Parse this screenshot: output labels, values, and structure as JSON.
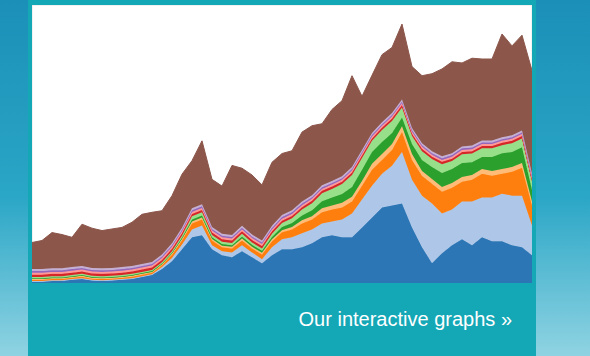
{
  "chart_data": {
    "type": "area",
    "stacked": true,
    "grid": true,
    "tick_labels": false,
    "x": [
      0,
      1,
      2,
      3,
      4,
      5,
      6,
      7,
      8,
      9,
      10,
      11,
      12,
      13,
      14,
      15,
      16,
      17,
      18,
      19,
      20,
      21,
      22,
      23,
      24,
      25,
      26,
      27,
      28,
      29,
      30,
      31,
      32,
      33,
      34,
      35,
      36,
      37,
      38,
      39,
      40,
      41,
      42,
      43,
      44,
      45,
      46,
      47,
      48,
      49,
      50
    ],
    "xlim": [
      0,
      50
    ],
    "xticks": [
      0,
      10,
      20,
      30,
      40,
      50
    ],
    "ylim": [
      0,
      7
    ],
    "yticks": [
      0,
      1,
      2,
      3,
      4,
      5,
      6,
      7
    ],
    "series": [
      {
        "color": "#2c76b5",
        "values": [
          0.03,
          0.03,
          0.05,
          0.05,
          0.08,
          0.1,
          0.06,
          0.05,
          0.06,
          0.08,
          0.1,
          0.15,
          0.2,
          0.35,
          0.55,
          0.85,
          1.15,
          1.2,
          0.85,
          0.7,
          0.65,
          0.8,
          0.65,
          0.5,
          0.7,
          0.85,
          0.85,
          0.9,
          1.0,
          1.15,
          1.2,
          1.15,
          1.15,
          1.4,
          1.65,
          1.9,
          1.95,
          2.0,
          1.4,
          0.9,
          0.5,
          0.75,
          0.95,
          1.1,
          0.95,
          1.15,
          1.05,
          1.05,
          0.95,
          0.9,
          0.7
        ]
      },
      {
        "color": "#aec7e8",
        "values": [
          0.02,
          0.02,
          0.02,
          0.02,
          0.02,
          0.02,
          0.02,
          0.02,
          0.02,
          0.02,
          0.02,
          0.02,
          0.02,
          0.05,
          0.08,
          0.12,
          0.2,
          0.25,
          0.1,
          0.1,
          0.12,
          0.15,
          0.12,
          0.1,
          0.2,
          0.25,
          0.3,
          0.35,
          0.35,
          0.35,
          0.35,
          0.45,
          0.6,
          0.7,
          0.8,
          0.85,
          1.0,
          1.3,
          1.2,
          1.3,
          1.5,
          1.0,
          0.9,
          0.95,
          1.1,
          1.0,
          1.1,
          1.2,
          1.25,
          1.3,
          0.75
        ]
      },
      {
        "color": "#ff7f0e",
        "values": [
          0.03,
          0.03,
          0.03,
          0.03,
          0.03,
          0.04,
          0.03,
          0.03,
          0.03,
          0.03,
          0.04,
          0.04,
          0.04,
          0.05,
          0.08,
          0.1,
          0.15,
          0.15,
          0.12,
          0.1,
          0.1,
          0.12,
          0.1,
          0.12,
          0.15,
          0.18,
          0.2,
          0.25,
          0.25,
          0.28,
          0.3,
          0.3,
          0.3,
          0.35,
          0.4,
          0.35,
          0.4,
          0.5,
          0.5,
          0.5,
          0.5,
          0.55,
          0.55,
          0.5,
          0.55,
          0.6,
          0.55,
          0.5,
          0.6,
          0.7,
          0.5
        ]
      },
      {
        "color": "#ffbb78",
        "values": [
          0.02,
          0.02,
          0.02,
          0.02,
          0.02,
          0.02,
          0.02,
          0.02,
          0.02,
          0.02,
          0.02,
          0.02,
          0.02,
          0.02,
          0.03,
          0.04,
          0.05,
          0.05,
          0.04,
          0.04,
          0.04,
          0.05,
          0.04,
          0.04,
          0.05,
          0.05,
          0.06,
          0.08,
          0.08,
          0.1,
          0.1,
          0.12,
          0.12,
          0.12,
          0.15,
          0.15,
          0.15,
          0.15,
          0.15,
          0.12,
          0.12,
          0.12,
          0.12,
          0.12,
          0.12,
          0.12,
          0.12,
          0.12,
          0.12,
          0.12,
          0.1
        ]
      },
      {
        "color": "#2ca02c",
        "values": [
          0.02,
          0.02,
          0.02,
          0.02,
          0.02,
          0.02,
          0.02,
          0.02,
          0.02,
          0.02,
          0.02,
          0.02,
          0.02,
          0.02,
          0.02,
          0.03,
          0.05,
          0.05,
          0.04,
          0.04,
          0.04,
          0.05,
          0.05,
          0.05,
          0.06,
          0.08,
          0.1,
          0.12,
          0.15,
          0.18,
          0.2,
          0.22,
          0.25,
          0.28,
          0.3,
          0.3,
          0.28,
          0.22,
          0.25,
          0.28,
          0.3,
          0.35,
          0.35,
          0.35,
          0.32,
          0.3,
          0.35,
          0.4,
          0.38,
          0.4,
          0.3
        ]
      },
      {
        "color": "#98df8a",
        "values": [
          0.03,
          0.03,
          0.03,
          0.03,
          0.03,
          0.03,
          0.03,
          0.03,
          0.03,
          0.03,
          0.03,
          0.03,
          0.03,
          0.03,
          0.04,
          0.05,
          0.08,
          0.08,
          0.06,
          0.06,
          0.06,
          0.07,
          0.06,
          0.06,
          0.08,
          0.1,
          0.12,
          0.15,
          0.18,
          0.2,
          0.22,
          0.25,
          0.3,
          0.3,
          0.28,
          0.3,
          0.3,
          0.25,
          0.2,
          0.22,
          0.2,
          0.22,
          0.2,
          0.22,
          0.22,
          0.22,
          0.22,
          0.2,
          0.22,
          0.22,
          0.2
        ]
      },
      {
        "color": "#d62728",
        "values": [
          0.06,
          0.06,
          0.06,
          0.06,
          0.06,
          0.06,
          0.06,
          0.06,
          0.06,
          0.06,
          0.06,
          0.06,
          0.06,
          0.06,
          0.06,
          0.06,
          0.06,
          0.06,
          0.06,
          0.06,
          0.06,
          0.06,
          0.06,
          0.06,
          0.06,
          0.06,
          0.06,
          0.06,
          0.06,
          0.06,
          0.06,
          0.06,
          0.06,
          0.06,
          0.06,
          0.06,
          0.06,
          0.06,
          0.06,
          0.06,
          0.06,
          0.06,
          0.06,
          0.06,
          0.06,
          0.06,
          0.06,
          0.06,
          0.06,
          0.06,
          0.06
        ]
      },
      {
        "color": "#ff9896",
        "values": [
          0.05,
          0.05,
          0.05,
          0.05,
          0.05,
          0.05,
          0.05,
          0.05,
          0.05,
          0.05,
          0.05,
          0.05,
          0.05,
          0.05,
          0.05,
          0.05,
          0.05,
          0.05,
          0.05,
          0.05,
          0.05,
          0.05,
          0.05,
          0.05,
          0.05,
          0.05,
          0.05,
          0.05,
          0.05,
          0.05,
          0.05,
          0.05,
          0.05,
          0.05,
          0.05,
          0.05,
          0.05,
          0.05,
          0.05,
          0.05,
          0.05,
          0.05,
          0.05,
          0.05,
          0.05,
          0.05,
          0.05,
          0.05,
          0.05,
          0.05,
          0.05
        ]
      },
      {
        "color": "#9467bd",
        "values": [
          0.04,
          0.04,
          0.04,
          0.04,
          0.04,
          0.04,
          0.04,
          0.04,
          0.04,
          0.04,
          0.04,
          0.04,
          0.04,
          0.04,
          0.04,
          0.04,
          0.04,
          0.04,
          0.04,
          0.04,
          0.04,
          0.04,
          0.04,
          0.04,
          0.04,
          0.04,
          0.04,
          0.04,
          0.04,
          0.04,
          0.04,
          0.04,
          0.04,
          0.04,
          0.04,
          0.04,
          0.04,
          0.04,
          0.04,
          0.04,
          0.04,
          0.04,
          0.04,
          0.04,
          0.04,
          0.04,
          0.04,
          0.04,
          0.04,
          0.04,
          0.04
        ]
      },
      {
        "color": "#c5b0d5",
        "values": [
          0.05,
          0.05,
          0.05,
          0.05,
          0.05,
          0.05,
          0.05,
          0.05,
          0.05,
          0.05,
          0.05,
          0.05,
          0.05,
          0.05,
          0.05,
          0.05,
          0.05,
          0.05,
          0.05,
          0.05,
          0.05,
          0.05,
          0.05,
          0.05,
          0.05,
          0.05,
          0.05,
          0.05,
          0.05,
          0.05,
          0.05,
          0.05,
          0.05,
          0.05,
          0.05,
          0.05,
          0.05,
          0.05,
          0.05,
          0.05,
          0.05,
          0.05,
          0.05,
          0.05,
          0.05,
          0.05,
          0.05,
          0.05,
          0.05,
          0.05,
          0.05
        ]
      },
      {
        "color": "#8c564b",
        "values": [
          0.67,
          0.72,
          0.9,
          0.85,
          0.75,
          1.05,
          1.0,
          0.95,
          0.98,
          1.0,
          1.1,
          1.25,
          1.25,
          1.1,
          1.2,
          1.35,
          1.2,
          1.6,
          1.2,
          1.2,
          1.75,
          1.45,
          1.5,
          1.4,
          1.6,
          1.55,
          1.5,
          1.75,
          1.75,
          1.55,
          1.8,
          1.9,
          2.3,
          1.35,
          1.45,
          1.7,
          1.65,
          1.9,
          1.55,
          1.7,
          1.95,
          2.2,
          2.3,
          2.1,
          2.2,
          2.05,
          2.05,
          2.6,
          2.25,
          2.4,
          2.6
        ]
      }
    ]
  },
  "link": {
    "text": "Our interactive graphs »"
  }
}
